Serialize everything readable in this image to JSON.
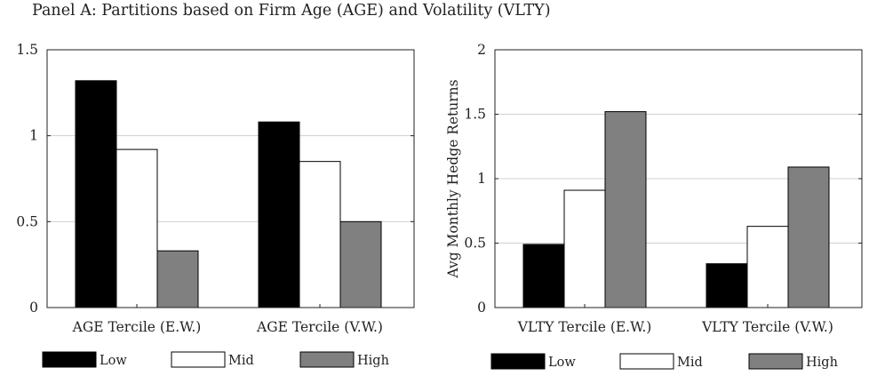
{
  "panel_title": "Panel A: Partitions based on Firm Age (AGE) and Volatility (VLTY)",
  "colors": {
    "Low": "#000000",
    "Mid": "#ffffff",
    "High": "#808080",
    "grid": "#d0d0d0",
    "axis": "#222222"
  },
  "chart_data": [
    {
      "type": "bar",
      "title": "",
      "xlabel": "",
      "ylabel": "",
      "ylim": [
        0,
        1.5
      ],
      "yticks": [
        0,
        0.5,
        1,
        1.5
      ],
      "ytick_labels": [
        "0",
        "0.5",
        "1",
        "1.5"
      ],
      "grid": true,
      "categories": [
        "AGE Tercile (E.W.)",
        "AGE Tercile (V.W.)"
      ],
      "series": [
        {
          "name": "Low",
          "values": [
            1.32,
            1.08
          ]
        },
        {
          "name": "Mid",
          "values": [
            0.92,
            0.85
          ]
        },
        {
          "name": "High",
          "values": [
            0.33,
            0.5
          ]
        }
      ],
      "legend": [
        "Low",
        "Mid",
        "High"
      ],
      "legend_position": "bottom"
    },
    {
      "type": "bar",
      "title": "",
      "xlabel": "",
      "ylabel": "Avg Monthly Hedge Returns",
      "ylim": [
        0,
        2
      ],
      "yticks": [
        0,
        0.5,
        1,
        1.5,
        2
      ],
      "ytick_labels": [
        "0",
        "0.5",
        "1",
        "1.5",
        "2"
      ],
      "grid": true,
      "categories": [
        "VLTY Tercile (E.W.)",
        "VLTY Tercile (V.W.)"
      ],
      "series": [
        {
          "name": "Low",
          "values": [
            0.49,
            0.34
          ]
        },
        {
          "name": "Mid",
          "values": [
            0.91,
            0.63
          ]
        },
        {
          "name": "High",
          "values": [
            1.52,
            1.09
          ]
        }
      ],
      "legend": [
        "Low",
        "Mid",
        "High"
      ],
      "legend_position": "bottom"
    }
  ]
}
